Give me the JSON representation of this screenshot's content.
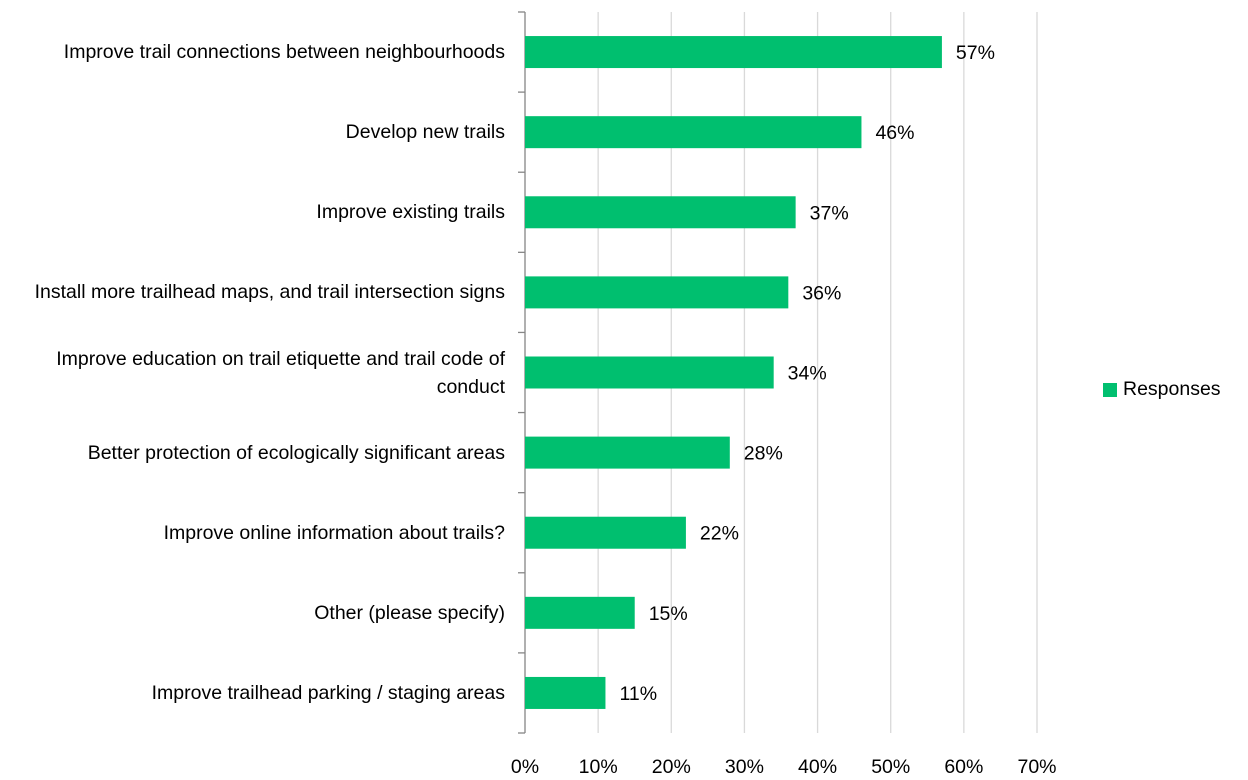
{
  "chart_data": {
    "type": "bar",
    "orientation": "horizontal",
    "categories": [
      "Improve trail connections between neighbourhoods",
      "Develop new trails",
      "Improve existing trails",
      "Install more trailhead maps, and trail intersection signs",
      "Improve education on trail etiquette and trail code of conduct",
      "Better protection of ecologically significant areas",
      "Improve online information about trails?",
      "Other (please specify)",
      "Improve trailhead parking / staging areas"
    ],
    "series": [
      {
        "name": "Responses",
        "values": [
          57,
          46,
          37,
          36,
          34,
          28,
          22,
          15,
          11
        ],
        "labels": [
          "57%",
          "46%",
          "37%",
          "36%",
          "34%",
          "28%",
          "22%",
          "15%",
          "11%"
        ]
      }
    ],
    "xlim": [
      0,
      70
    ],
    "xticks": [
      0,
      10,
      20,
      30,
      40,
      50,
      60,
      70
    ],
    "xtick_labels": [
      "0%",
      "10%",
      "20%",
      "30%",
      "40%",
      "50%",
      "60%",
      "70%"
    ],
    "grid": "vertical",
    "legend": "right",
    "colors": {
      "bar": "#00BF6F",
      "grid": "#D9D9D9",
      "axis": "#868686"
    }
  }
}
